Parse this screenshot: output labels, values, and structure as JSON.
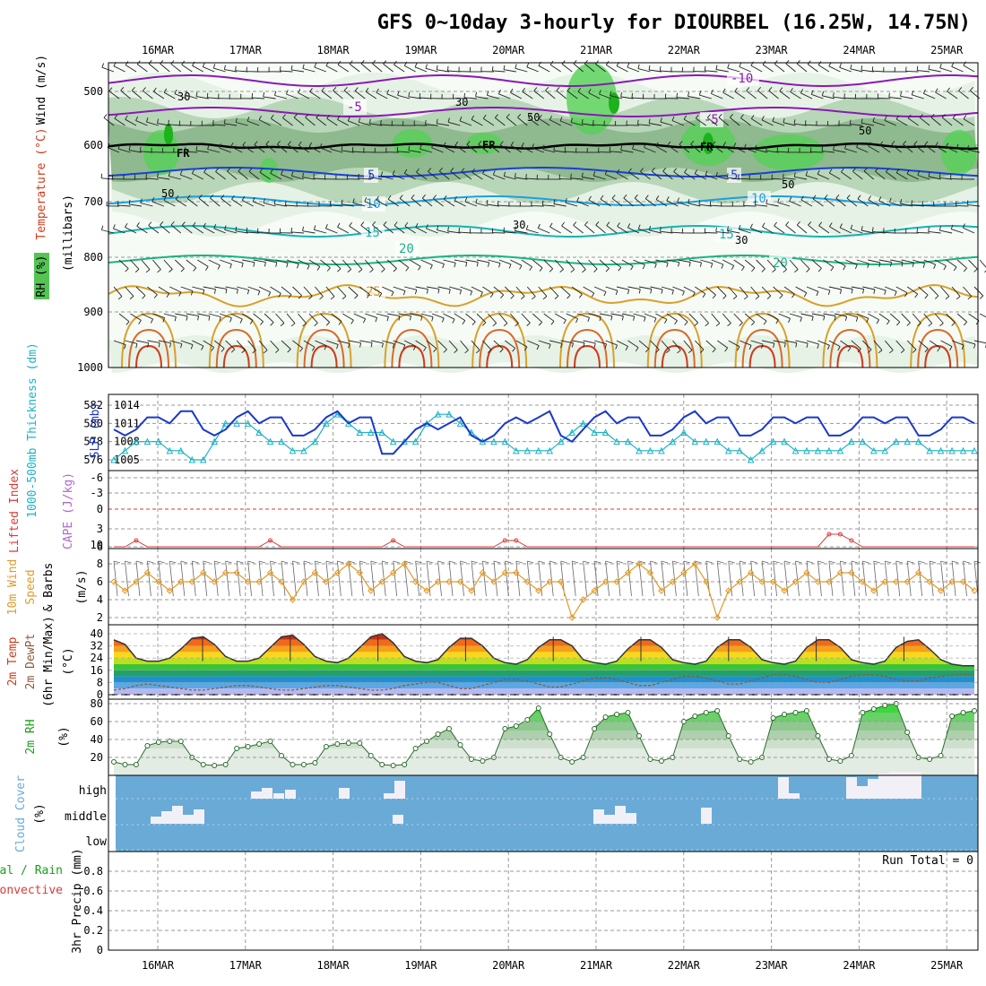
{
  "title": "GFS 0~10day 3-hourly for DIOURBEL (16.25W, 14.75N)",
  "dates": [
    "16MAR",
    "17MAR",
    "18MAR",
    "19MAR",
    "20MAR",
    "21MAR",
    "22MAR",
    "23MAR",
    "24MAR",
    "25MAR"
  ],
  "colors": {
    "rh_light": "#e6f2e6",
    "rh_mid": "#b8d6b8",
    "rh_dark": "#8fb98f",
    "rh_green": "#55d155",
    "rh_bright": "#1bb21b",
    "t_purple": "#8a1ab3",
    "t_blue": "#1a3fd6",
    "t_cyan": "#1aa0e0",
    "t_teal": "#14b3b3",
    "t_green": "#1ab380",
    "t_orange": "#d9a02a",
    "t_red": "#d13a1a",
    "slp": "#1a38cc",
    "thick": "#1ab3c4",
    "li": "#d93a3a",
    "wind10": "#e09a2a",
    "cloud_bg": "#6aaad6",
    "cloud_fill": "#f2f0f7",
    "precip_green": "#1aa01a"
  },
  "panels": {
    "upper_air": {
      "ylabel_wind": "Wind (m/s)",
      "ylabel_temp": "Temperature (°C)",
      "ylabel_rh": "RH (%)",
      "ylabel_units": "(millibars)",
      "yticks": [
        "500",
        "600",
        "700",
        "800",
        "900",
        "1000"
      ],
      "contour_labels": [
        "-10",
        "-5",
        "-5",
        "5",
        "5",
        "10",
        "10",
        "15",
        "15",
        "20",
        "20",
        "25"
      ],
      "rh_labels": [
        "30",
        "50",
        "50",
        "30",
        "30",
        "50",
        "50",
        "30"
      ],
      "freezing_label": "FR"
    },
    "slp_thick": {
      "ylabel_slp": "SLP (mb)",
      "ylabel_thick": "1000-500mb Thickness (dm)",
      "yticks_left": [
        "582",
        "580",
        "578",
        "576"
      ],
      "yticks_right": [
        "1014",
        "1011",
        "1008",
        "1005"
      ]
    },
    "cape_li": {
      "ylabel_li": "Lifted Index",
      "ylabel_cape": "CAPE (J/kg)",
      "yticks": [
        "-6",
        "-3",
        "0",
        "3",
        "6"
      ],
      "yticks_right": [
        "10"
      ]
    },
    "wind10": {
      "ylabel1": "10m Wind",
      "ylabel2": "Speed",
      "ylabel3": "& Barbs",
      "units": "(m/s)",
      "yticks": [
        "8",
        "6",
        "4",
        "2"
      ]
    },
    "temp2m": {
      "ylabel1": "2m Temp",
      "ylabel2": "2m DewPt",
      "ylabel3": "(6hr Min/Max)",
      "units": "(°C)",
      "yticks": [
        "40",
        "32",
        "24",
        "16",
        "8",
        "0"
      ]
    },
    "rh2m": {
      "ylabel": "2m RH",
      "units": "(%)",
      "yticks": [
        "80",
        "60",
        "40",
        "20"
      ]
    },
    "cloud": {
      "ylabel": "Cloud Cover",
      "units": "(%)",
      "levels": [
        "high",
        "middle",
        "low"
      ]
    },
    "precip": {
      "ylabel1": "Total / Rain",
      "ylabel2": "Convective",
      "ylabel3": "3hr Precip (mm)",
      "yticks": [
        "0.8",
        "0.6",
        "0.4",
        "0.2",
        "0"
      ],
      "run_total": "Run Total = 0"
    }
  },
  "chart_data": [
    {
      "type": "line",
      "name": "slp_and_thickness",
      "x_unit": "3-hourly steps from 15MAR 12Z",
      "series": [
        {
          "name": "SLP (mb)",
          "values": [
            1010,
            1009,
            1010,
            1012,
            1012,
            1011,
            1013,
            1013,
            1010,
            1009,
            1010,
            1012,
            1013,
            1011,
            1012,
            1012,
            1009,
            1009,
            1010,
            1012,
            1013,
            1011,
            1012,
            1012,
            1006,
            1006,
            1008,
            1010,
            1011,
            1010,
            1011,
            1012,
            1009,
            1008,
            1009,
            1011,
            1012,
            1011,
            1012,
            1013,
            1009,
            1008,
            1010,
            1012,
            1013,
            1011,
            1012,
            1012,
            1009,
            1009,
            1010,
            1012,
            1013,
            1011,
            1012,
            1012,
            1009,
            1009,
            1010,
            1012,
            1012,
            1011,
            1012,
            1012,
            1009,
            1009,
            1010,
            1012,
            1012,
            1011,
            1012,
            1012,
            1009,
            1009,
            1010,
            1012,
            1012,
            1011
          ]
        },
        {
          "name": "Thickness (dm)",
          "values": [
            576,
            577,
            578,
            578,
            578,
            577,
            577,
            576,
            576,
            578,
            580,
            580,
            580,
            579,
            578,
            578,
            577,
            577,
            578,
            580,
            581,
            580,
            579,
            579,
            579,
            578,
            578,
            578,
            580,
            581,
            581,
            580,
            579,
            578,
            578,
            578,
            577,
            577,
            577,
            577,
            578,
            579,
            580,
            579,
            579,
            578,
            578,
            577,
            577,
            577,
            578,
            579,
            578,
            578,
            578,
            577,
            577,
            576,
            577,
            578,
            578,
            577,
            577,
            577,
            577,
            577,
            578,
            578,
            577,
            577,
            578,
            578,
            578,
            577,
            577,
            577,
            577,
            577
          ]
        }
      ]
    },
    {
      "type": "line",
      "name": "wind10m_speed",
      "values": [
        6,
        5,
        6,
        7,
        6,
        5,
        6,
        6,
        7,
        6,
        7,
        7,
        6,
        6,
        7,
        6,
        4,
        6,
        7,
        6,
        7,
        8,
        7,
        5,
        6,
        7,
        8,
        6,
        5,
        6,
        6,
        6,
        5,
        7,
        6,
        7,
        7,
        6,
        5,
        6,
        6,
        2,
        4,
        5,
        6,
        6,
        7,
        8,
        7,
        5,
        6,
        7,
        8,
        6,
        2,
        5,
        6,
        7,
        6,
        6,
        5,
        6,
        7,
        6,
        6,
        7,
        7,
        6,
        5,
        6,
        6,
        6,
        7,
        6,
        5,
        6,
        6,
        5
      ]
    },
    {
      "type": "area",
      "name": "temp2m",
      "values": [
        36,
        33,
        24,
        22,
        22,
        24,
        30,
        37,
        38,
        33,
        25,
        22,
        22,
        24,
        31,
        38,
        39,
        33,
        25,
        22,
        21,
        24,
        31,
        38,
        40,
        34,
        25,
        22,
        21,
        23,
        31,
        37,
        37,
        32,
        24,
        21,
        20,
        23,
        31,
        36,
        36,
        32,
        23,
        21,
        20,
        22,
        30,
        36,
        36,
        31,
        23,
        21,
        20,
        22,
        31,
        36,
        36,
        31,
        23,
        21,
        20,
        22,
        31,
        36,
        36,
        31,
        23,
        21,
        20,
        22,
        31,
        35,
        36,
        30,
        23,
        20,
        19,
        19
      ],
      "dewpoint": [
        3,
        4,
        6,
        7,
        6,
        5,
        4,
        3,
        3,
        4,
        5,
        6,
        6,
        5,
        4,
        3,
        3,
        4,
        5,
        6,
        6,
        5,
        4,
        3,
        3,
        4,
        6,
        7,
        8,
        8,
        6,
        4,
        4,
        6,
        8,
        10,
        10,
        9,
        7,
        5,
        5,
        7,
        9,
        11,
        11,
        10,
        8,
        6,
        6,
        8,
        10,
        12,
        12,
        11,
        9,
        7,
        7,
        9,
        11,
        13,
        13,
        12,
        10,
        8,
        8,
        10,
        12,
        13,
        13,
        12,
        10,
        9,
        9,
        11,
        12,
        13,
        13,
        13
      ]
    },
    {
      "type": "area",
      "name": "rh2m",
      "values": [
        15,
        12,
        12,
        33,
        37,
        38,
        38,
        20,
        12,
        11,
        12,
        30,
        32,
        35,
        38,
        22,
        12,
        12,
        14,
        32,
        35,
        36,
        36,
        22,
        12,
        11,
        12,
        30,
        38,
        46,
        52,
        34,
        18,
        16,
        20,
        52,
        55,
        62,
        75,
        46,
        20,
        15,
        20,
        52,
        65,
        68,
        70,
        44,
        18,
        16,
        20,
        60,
        66,
        70,
        72,
        44,
        18,
        15,
        20,
        64,
        68,
        70,
        72,
        44,
        18,
        16,
        22,
        70,
        74,
        78,
        80,
        48,
        20,
        18,
        22,
        66,
        70,
        72
      ]
    },
    {
      "type": "line",
      "name": "lifted_index",
      "values": [
        6,
        6,
        5,
        6,
        6,
        6,
        6,
        6,
        6,
        6,
        6,
        6,
        6,
        6,
        5,
        6,
        6,
        6,
        6,
        6,
        6,
        6,
        6,
        6,
        6,
        5,
        6,
        6,
        6,
        6,
        6,
        6,
        6,
        6,
        6,
        5,
        5,
        6,
        6,
        6,
        6,
        6,
        6,
        6,
        6,
        6,
        6,
        6,
        6,
        6,
        6,
        6,
        6,
        6,
        6,
        6,
        6,
        6,
        6,
        6,
        6,
        6,
        6,
        6,
        4,
        4,
        5,
        6,
        6,
        6,
        6,
        6,
        6,
        6,
        6,
        6,
        6,
        6
      ],
      "ylim": [
        -6,
        6
      ]
    },
    {
      "type": "bar",
      "name": "precip3hr",
      "values": [
        0,
        0,
        0,
        0,
        0,
        0,
        0,
        0,
        0,
        0
      ],
      "ylim": [
        0,
        1
      ]
    }
  ]
}
